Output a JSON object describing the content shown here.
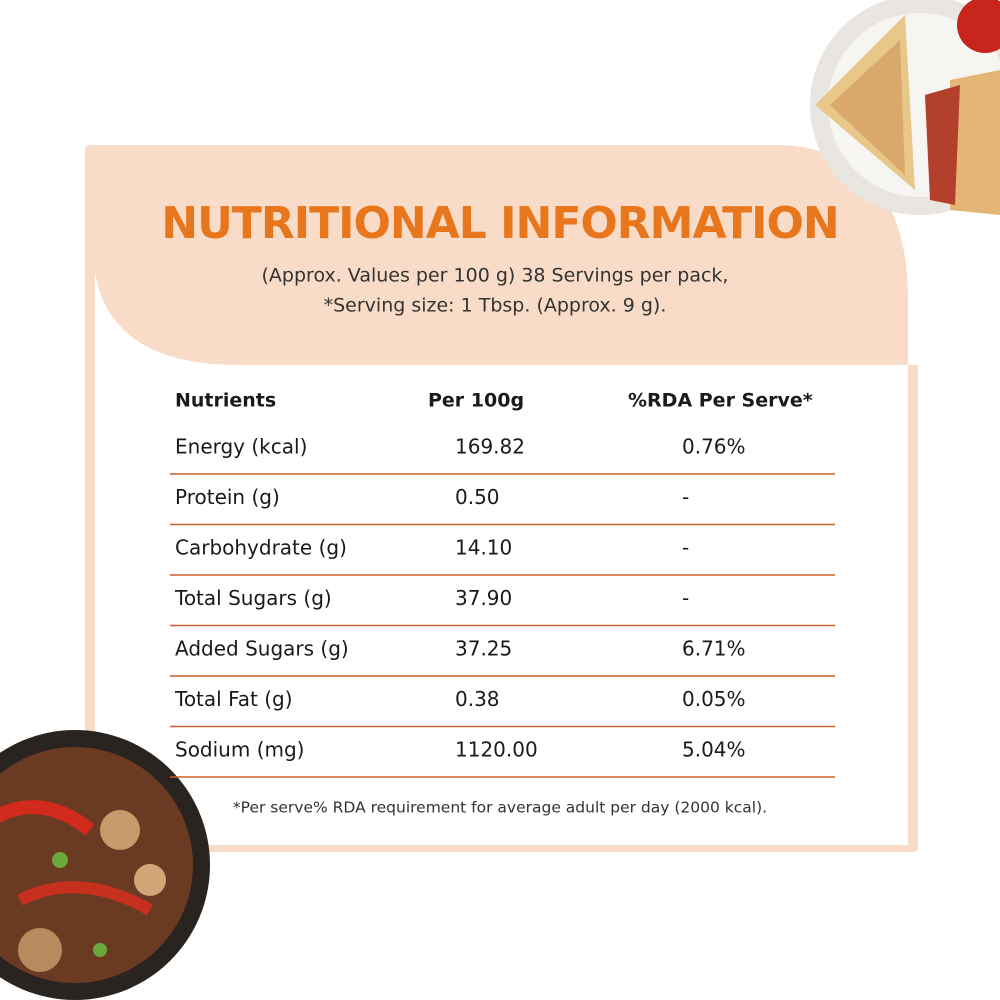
{
  "header": {
    "title": "NUTRITIONAL INFORMATION",
    "subtitle": [
      "(Approx. Values per 100 g) 38 Servings per pack,",
      "*Serving size: 1 Tbsp. (Approx. 9 g)."
    ]
  },
  "table": {
    "columns": [
      "Nutrients",
      "Per 100g",
      "%RDA Per Serve*"
    ],
    "rows": [
      [
        "Energy (kcal)",
        "169.82",
        "0.76%"
      ],
      [
        "Protein (g)",
        "0.50",
        "-"
      ],
      [
        "Carbohydrate (g)",
        "14.10",
        "-"
      ],
      [
        "Total Sugars (g)",
        "37.90",
        "-"
      ],
      [
        "Added Sugars (g)",
        "37.25",
        "6.71%"
      ],
      [
        "Total Fat (g)",
        "0.38",
        "0.05%"
      ],
      [
        "Sodium (mg)",
        "1120.00",
        "5.04%"
      ]
    ]
  },
  "footnote": "*Per serve% RDA requirement for average adult per day (2000 kcal)."
}
